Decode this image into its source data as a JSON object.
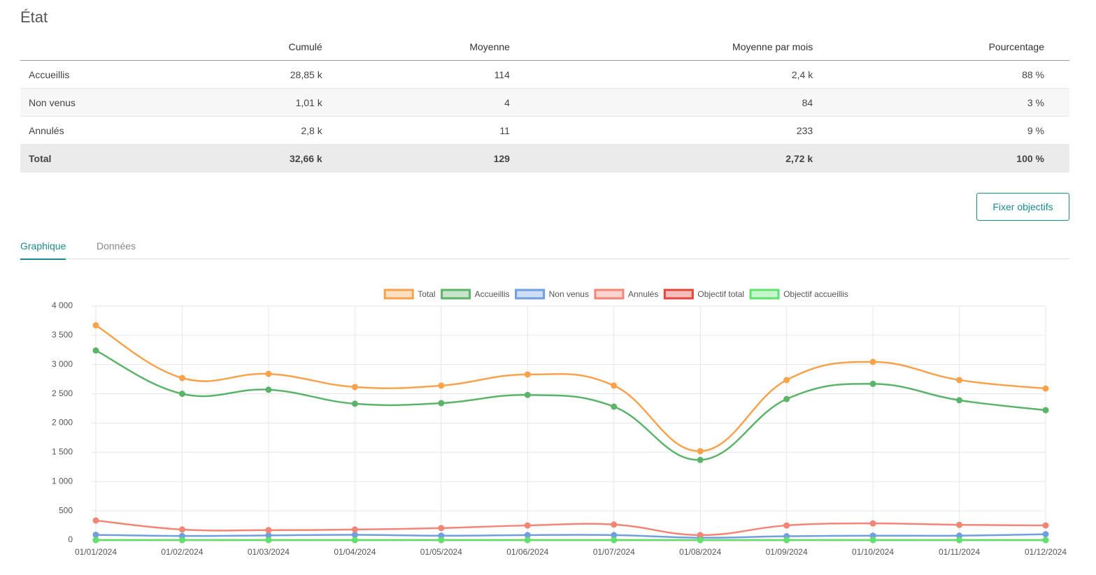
{
  "title": "État",
  "table": {
    "headers": [
      "Cumulé",
      "Moyenne",
      "Moyenne par mois",
      "Pourcentage"
    ],
    "rows": [
      [
        "Accueillis",
        "28,85 k",
        "114",
        "2,4 k",
        "88 %"
      ],
      [
        "Non venus",
        "1,01 k",
        "4",
        "84",
        "3 %"
      ],
      [
        "Annulés",
        "2,8 k",
        "11",
        "233",
        "9 %"
      ]
    ],
    "total": [
      "Total",
      "32,66 k",
      "129",
      "2,72 k",
      "100 %"
    ]
  },
  "button": "Fixer objectifs",
  "tabs": [
    "Graphique",
    "Données"
  ],
  "chart_data": {
    "type": "line",
    "categories": [
      "01/01/2024",
      "01/02/2024",
      "01/03/2024",
      "01/04/2024",
      "01/05/2024",
      "01/06/2024",
      "01/07/2024",
      "01/08/2024",
      "01/09/2024",
      "01/10/2024",
      "01/11/2024",
      "01/12/2024"
    ],
    "series": [
      {
        "name": "Total",
        "color": "#f9a24c",
        "values": [
          3670,
          2770,
          2840,
          2615,
          2640,
          2830,
          2640,
          1520,
          2735,
          3045,
          2735,
          2590
        ]
      },
      {
        "name": "Accueillis",
        "color": "#5cb46b",
        "values": [
          3240,
          2500,
          2570,
          2330,
          2340,
          2480,
          2280,
          1370,
          2410,
          2670,
          2390,
          2220
        ]
      },
      {
        "name": "Non venus",
        "color": "#6f9fe0",
        "values": [
          90,
          70,
          80,
          90,
          75,
          85,
          85,
          40,
          65,
          75,
          75,
          100
        ]
      },
      {
        "name": "Annulés",
        "color": "#f28576",
        "values": [
          335,
          180,
          170,
          180,
          205,
          250,
          265,
          85,
          250,
          285,
          260,
          250
        ]
      },
      {
        "name": "Objectif total",
        "color": "#e5453a",
        "values": [
          0,
          0,
          0,
          0,
          0,
          0,
          0,
          0,
          0,
          0,
          0,
          0
        ]
      },
      {
        "name": "Objectif accueillis",
        "color": "#5fe36e",
        "values": [
          0,
          0,
          0,
          0,
          0,
          0,
          0,
          0,
          0,
          0,
          0,
          0
        ]
      }
    ],
    "ylim": [
      0,
      4000
    ],
    "yticks": [
      0,
      500,
      {
        "value": 1000,
        "label": "1 000"
      },
      {
        "value": 1500,
        "label": "1 500"
      },
      {
        "value": 2000,
        "label": "2 000"
      },
      {
        "value": 2500,
        "label": "2 500"
      },
      {
        "value": 3000,
        "label": "3 000"
      },
      {
        "value": 3500,
        "label": "3 500"
      },
      {
        "value": 4000,
        "label": "4 000"
      }
    ],
    "grid": true,
    "legend": "top"
  }
}
